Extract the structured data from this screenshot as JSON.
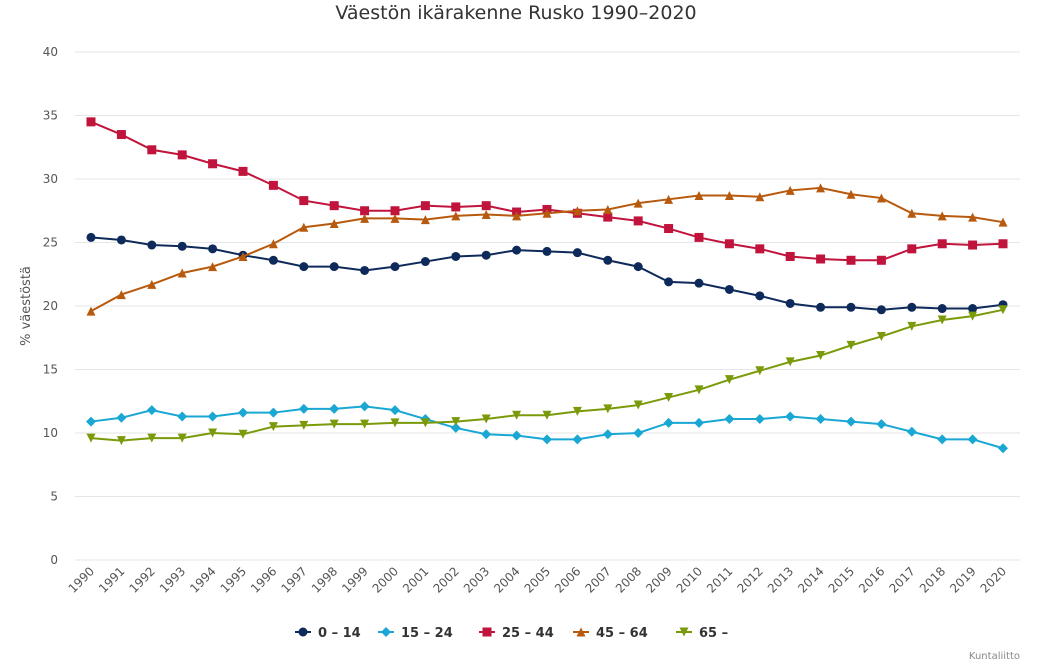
{
  "chart_data": {
    "type": "line",
    "title": "Väestön ikärakenne Rusko 1990–2020",
    "xlabel": "",
    "ylabel": "% väestöstä",
    "ylim": [
      0,
      40
    ],
    "yticks": [
      0,
      5,
      10,
      15,
      20,
      25,
      30,
      35,
      40
    ],
    "grid": true,
    "legend_position": "bottom-center",
    "credit": "Kuntaliitto",
    "categories": [
      "1990",
      "1991",
      "1992",
      "1993",
      "1994",
      "1995",
      "1996",
      "1997",
      "1998",
      "1999",
      "2000",
      "2001",
      "2002",
      "2003",
      "2004",
      "2005",
      "2006",
      "2007",
      "2008",
      "2009",
      "2010",
      "2011",
      "2012",
      "2013",
      "2014",
      "2015",
      "2016",
      "2017",
      "2018",
      "2019",
      "2020"
    ],
    "series": [
      {
        "name": "0 – 14",
        "color": "#0e2a5a",
        "marker": "circle",
        "values": [
          25.4,
          25.2,
          24.8,
          24.7,
          24.5,
          24.0,
          23.6,
          23.1,
          23.1,
          22.8,
          23.1,
          23.5,
          23.9,
          24.0,
          24.4,
          24.3,
          24.2,
          23.6,
          23.1,
          21.9,
          21.8,
          21.3,
          20.8,
          20.2,
          19.9,
          19.9,
          19.7,
          19.9,
          19.8,
          19.8,
          20.1
        ]
      },
      {
        "name": "15 – 24",
        "color": "#1aa7d4",
        "marker": "diamond",
        "values": [
          10.9,
          11.2,
          11.8,
          11.3,
          11.3,
          11.6,
          11.6,
          11.9,
          11.9,
          12.1,
          11.8,
          11.1,
          10.4,
          9.9,
          9.8,
          9.5,
          9.5,
          9.9,
          10.0,
          10.8,
          10.8,
          11.1,
          11.1,
          11.3,
          11.1,
          10.9,
          10.7,
          10.1,
          9.5,
          9.5,
          8.8
        ]
      },
      {
        "name": "25 – 44",
        "color": "#c0143c",
        "marker": "square",
        "values": [
          34.5,
          33.5,
          32.3,
          31.9,
          31.2,
          30.6,
          29.5,
          28.3,
          27.9,
          27.5,
          27.5,
          27.9,
          27.8,
          27.9,
          27.4,
          27.6,
          27.3,
          27.0,
          26.7,
          26.1,
          25.4,
          24.9,
          24.5,
          23.9,
          23.7,
          23.6,
          23.6,
          24.5,
          24.9,
          24.8,
          24.9
        ]
      },
      {
        "name": "45 – 64",
        "color": "#b85a0e",
        "marker": "triangle-up",
        "values": [
          19.6,
          20.9,
          21.7,
          22.6,
          23.1,
          23.9,
          24.9,
          26.2,
          26.5,
          26.9,
          26.9,
          26.8,
          27.1,
          27.2,
          27.1,
          27.3,
          27.5,
          27.6,
          28.1,
          28.4,
          28.7,
          28.7,
          28.6,
          29.1,
          29.3,
          28.8,
          28.5,
          27.3,
          27.1,
          27.0,
          26.6
        ]
      },
      {
        "name": "65 –",
        "color": "#7a9a0a",
        "marker": "triangle-down",
        "values": [
          9.6,
          9.4,
          9.6,
          9.6,
          10.0,
          9.9,
          10.5,
          10.6,
          10.7,
          10.7,
          10.8,
          10.8,
          10.9,
          11.1,
          11.4,
          11.4,
          11.7,
          11.9,
          12.2,
          12.8,
          13.4,
          14.2,
          14.9,
          15.6,
          16.1,
          16.9,
          17.6,
          18.4,
          18.9,
          19.2,
          19.7
        ]
      }
    ]
  }
}
